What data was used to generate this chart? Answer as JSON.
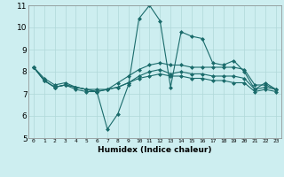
{
  "xlabel": "Humidex (Indice chaleur)",
  "x_ticks": [
    0,
    1,
    2,
    3,
    4,
    5,
    6,
    7,
    8,
    9,
    10,
    11,
    12,
    13,
    14,
    15,
    16,
    17,
    18,
    19,
    20,
    21,
    22,
    23
  ],
  "ylim": [
    5,
    11
  ],
  "xlim": [
    -0.5,
    23.5
  ],
  "yticks": [
    5,
    6,
    7,
    8,
    9,
    10,
    11
  ],
  "bg_color": "#cdeef0",
  "line_color": "#1a6b6b",
  "lines": [
    [
      8.2,
      7.6,
      7.3,
      7.4,
      7.2,
      7.1,
      7.1,
      5.4,
      6.1,
      7.4,
      10.4,
      11.0,
      10.3,
      7.3,
      9.8,
      9.6,
      9.5,
      8.4,
      8.3,
      8.5,
      8.0,
      7.2,
      7.5,
      7.2
    ],
    [
      8.2,
      7.7,
      7.4,
      7.5,
      7.3,
      7.2,
      7.2,
      7.2,
      7.5,
      7.8,
      8.1,
      8.3,
      8.4,
      8.3,
      8.3,
      8.2,
      8.2,
      8.2,
      8.2,
      8.2,
      8.1,
      7.4,
      7.4,
      7.2
    ],
    [
      8.2,
      7.6,
      7.3,
      7.4,
      7.3,
      7.2,
      7.1,
      7.2,
      7.3,
      7.5,
      7.8,
      8.0,
      8.1,
      7.9,
      8.0,
      7.9,
      7.9,
      7.8,
      7.8,
      7.8,
      7.7,
      7.2,
      7.3,
      7.2
    ],
    [
      8.2,
      7.6,
      7.3,
      7.4,
      7.3,
      7.2,
      7.1,
      7.2,
      7.3,
      7.5,
      7.7,
      7.8,
      7.9,
      7.8,
      7.8,
      7.7,
      7.7,
      7.6,
      7.6,
      7.5,
      7.5,
      7.1,
      7.2,
      7.1
    ]
  ]
}
